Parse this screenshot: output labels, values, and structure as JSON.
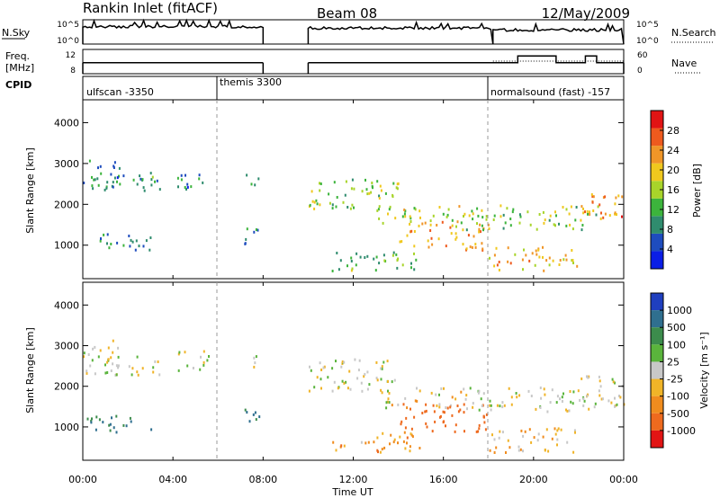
{
  "header": {
    "station_title": "Rankin Inlet (fitACF)",
    "beam": "Beam 08",
    "date": "12/May/2009"
  },
  "noise_panel": {
    "left_label": "N.Sky",
    "right_label": "N.Search",
    "left_ticks": [
      "10^5",
      "10^0"
    ],
    "right_ticks": [
      "10^5",
      "10^0"
    ]
  },
  "freq_panel": {
    "left_label_line1": "Freq.",
    "left_label_line2": "[MHz]",
    "right_label": "Nave",
    "left_ticks": [
      "12",
      "8"
    ],
    "right_ticks": [
      "60",
      "0"
    ]
  },
  "cpid_panel": {
    "label": "CPID",
    "segments": [
      "ulfscan -3350",
      "themis 3300",
      "normalsound (fast) -157"
    ]
  },
  "power_panel": {
    "ylabel": "Slant Range [km]",
    "yticks": [
      "4000",
      "3000",
      "2000",
      "1000"
    ],
    "colorbar_label": "Power [dB]",
    "colorbar_ticks": [
      "28",
      "24",
      "20",
      "16",
      "12",
      "8",
      "4"
    ],
    "colors": [
      "#0a1ee6",
      "#1e4cbe",
      "#2f8c6e",
      "#3cb43c",
      "#a8d42a",
      "#f0c81e",
      "#f09628",
      "#ee5a1e",
      "#e11414"
    ]
  },
  "velocity_panel": {
    "ylabel": "Slant Range [km]",
    "yticks": [
      "4000",
      "3000",
      "2000",
      "1000"
    ],
    "colorbar_label": "Velocity [m s⁻¹]",
    "colorbar_ticks": [
      "1000",
      "500",
      "100",
      "25",
      "-25",
      "-100",
      "-500",
      "-1000"
    ],
    "colors": [
      "#1f3fbf",
      "#2f6f8f",
      "#3c8c4c",
      "#5ab43c",
      "#c8c8c8",
      "#f0b428",
      "#f08c1e",
      "#ee6a1e",
      "#e11414"
    ]
  },
  "x_axis": {
    "ticks": [
      "00:00",
      "04:00",
      "08:00",
      "12:00",
      "16:00",
      "20:00",
      "00:00"
    ],
    "label": "Time UT"
  },
  "chart_data": {
    "type": "heatmap",
    "xlim_hours": [
      0,
      24
    ],
    "ylim_km": [
      180,
      4560
    ],
    "cpid_boundaries_hours": [
      6.0,
      18.0
    ],
    "data_gap_hours": [
      8.0,
      10.0
    ],
    "power_scale_db": [
      0,
      30
    ],
    "velocity_scale_ms": [
      -1000,
      1000
    ],
    "scatter_regions": [
      {
        "t0": 0.0,
        "t1": 1.6,
        "r0": 2300,
        "r1": 3200,
        "power_db": 8,
        "velocity_ms": 0
      },
      {
        "t0": 1.0,
        "t1": 3.5,
        "r0": 2300,
        "r1": 2800,
        "power_db": 9,
        "velocity_ms": 0
      },
      {
        "t0": 4.0,
        "t1": 5.6,
        "r0": 2400,
        "r1": 2900,
        "power_db": 7,
        "velocity_ms": 0
      },
      {
        "t0": 0.0,
        "t1": 3.0,
        "r0": 900,
        "r1": 1300,
        "power_db": 8,
        "velocity_ms": 300
      },
      {
        "t0": 7.0,
        "t1": 7.8,
        "r0": 2500,
        "r1": 2800,
        "power_db": 6,
        "velocity_ms": 0
      },
      {
        "t0": 7.0,
        "t1": 7.8,
        "r0": 1000,
        "r1": 1500,
        "power_db": 8,
        "velocity_ms": 300
      },
      {
        "t0": 10.0,
        "t1": 14.0,
        "r0": 1900,
        "r1": 2700,
        "power_db": 14,
        "velocity_ms": 0
      },
      {
        "t0": 13.0,
        "t1": 17.0,
        "r0": 1500,
        "r1": 2000,
        "power_db": 16,
        "velocity_ms": -50
      },
      {
        "t0": 14.0,
        "t1": 18.0,
        "r0": 900,
        "r1": 1600,
        "power_db": 20,
        "velocity_ms": -500
      },
      {
        "t0": 11.0,
        "t1": 15.0,
        "r0": 400,
        "r1": 900,
        "power_db": 12,
        "velocity_ms": -200
      },
      {
        "t0": 17.0,
        "t1": 23.0,
        "r0": 1400,
        "r1": 2000,
        "power_db": 14,
        "velocity_ms": 0
      },
      {
        "t0": 18.0,
        "t1": 22.0,
        "r0": 400,
        "r1": 1000,
        "power_db": 20,
        "velocity_ms": -150
      },
      {
        "t0": 22.0,
        "t1": 24.0,
        "r0": 1500,
        "r1": 2300,
        "power_db": 22,
        "velocity_ms": 0
      }
    ],
    "noise_sky_segments": [
      {
        "t0": 0.0,
        "t1": 8.0,
        "level": 0.72
      },
      {
        "t0": 10.0,
        "t1": 18.2,
        "level": 0.66
      },
      {
        "t0": 18.2,
        "t1": 24.0,
        "level": 0.58
      }
    ],
    "freq_segments_mhz": [
      {
        "t0": 0.0,
        "t1": 8.0,
        "value": 10.3
      },
      {
        "t0": 10.0,
        "t1": 18.2,
        "value": 10.3
      },
      {
        "t0": 18.2,
        "t1": 19.3,
        "value": 10.3
      },
      {
        "t0": 19.3,
        "t1": 21.0,
        "value": 12.2
      },
      {
        "t0": 21.0,
        "t1": 22.3,
        "value": 10.3
      },
      {
        "t0": 22.3,
        "t1": 22.8,
        "value": 12.2
      },
      {
        "t0": 22.8,
        "t1": 24.0,
        "value": 10.3
      }
    ]
  }
}
